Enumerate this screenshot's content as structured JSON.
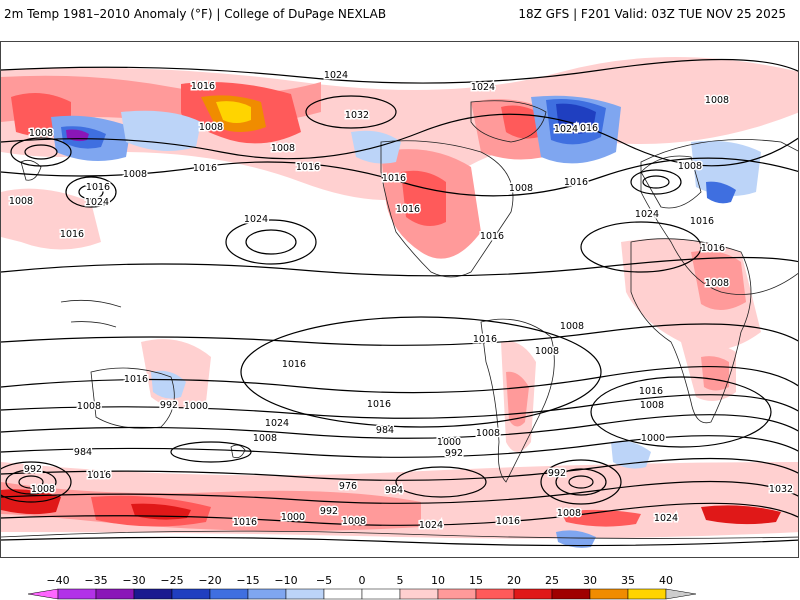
{
  "header": {
    "title_left": "2m Temp 1981–2010 Anomaly (°F) | College of DuPage NEXLAB",
    "title_right": "18Z GFS | F201 Valid: 03Z TUE NOV 25 2025"
  },
  "colorbar": {
    "labels": [
      "−40",
      "−35",
      "−30",
      "−25",
      "−20",
      "−15",
      "−10",
      "−5",
      "0",
      "5",
      "10",
      "15",
      "20",
      "25",
      "30",
      "35",
      "40"
    ],
    "colors": [
      "#e07aff",
      "#b232e8",
      "#8a16b8",
      "#1a1a90",
      "#1f3fc0",
      "#3f6fe0",
      "#7fa6f0",
      "#bcd4f8",
      "#ffffff",
      "#ffffff",
      "#ffd0d0",
      "#ff9a9a",
      "#ff5a5a",
      "#e01818",
      "#a00000",
      "#f08c00",
      "#ffd400"
    ],
    "under_color": "#ff66ff",
    "over_color": "#cccccc"
  },
  "isobars": {
    "labels": [
      "1016",
      "1024",
      "1016",
      "1008",
      "1032",
      "1024",
      "1008",
      "1008",
      "1008",
      "1016",
      "1008",
      "1016",
      "1016",
      "1024",
      "1016",
      "1016",
      "1024",
      "1016",
      "1016",
      "1008",
      "1016",
      "1024",
      "1016",
      "1008",
      "1008",
      "1008",
      "1016",
      "1024",
      "1016",
      "1008",
      "1008",
      "1016",
      "1016",
      "1016",
      "992",
      "1000",
      "1008",
      "984",
      "1016",
      "984",
      "1024",
      "1008",
      "1000",
      "992",
      "1008",
      "1008",
      "992",
      "1000",
      "992",
      "976",
      "984",
      "992",
      "1000",
      "1008",
      "1016",
      "1024",
      "1016",
      "1008",
      "1024",
      "1032",
      "1016",
      "1008",
      "1016"
    ]
  },
  "map_colors": {
    "land_outline": "#222222",
    "isobar": "#000000",
    "warm_light": "#ffd0d0",
    "warm_mid": "#ff9a9a",
    "warm_strong": "#ff5a5a",
    "warm_dark": "#e01818",
    "warm_extreme": "#a00000",
    "hot": "#f08c00",
    "hottest": "#ffd400",
    "cool_light": "#bcd4f8",
    "cool_mid": "#7fa6f0",
    "cool_strong": "#3f6fe0",
    "cool_dark": "#1f3fc0",
    "cool_extreme": "#1a1a90",
    "cold_purple": "#8a16b8",
    "cold_magenta": "#e07aff"
  }
}
